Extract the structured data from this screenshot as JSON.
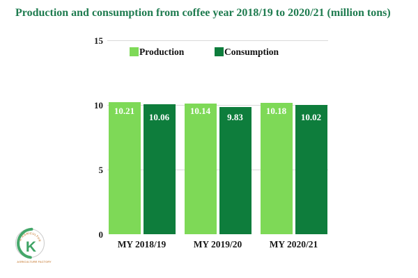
{
  "chart_data": {
    "type": "bar",
    "title": "Production and consumption from coffee year 2018/19 to 2020/21 (million tons)",
    "title_color": "#1e7b4f",
    "categories": [
      "MY 2018/19",
      "MY 2019/20",
      "MY 2020/21"
    ],
    "series": [
      {
        "name": "Production",
        "color": "#7ed957",
        "values": [
          10.21,
          10.14,
          10.18
        ]
      },
      {
        "name": "Consumption",
        "color": "#0e7d3c",
        "values": [
          10.06,
          9.83,
          10.02
        ]
      }
    ],
    "ylim": [
      0,
      15
    ],
    "yticks": [
      0,
      5,
      10,
      15
    ],
    "grid": true,
    "gridline_color": "#d9d9d9",
    "value_labels": true,
    "value_label_color": "#ffffff",
    "legend_position": "top",
    "xlabel": "",
    "ylabel": ""
  },
  "logo": {
    "letter": "K",
    "arc_text": "K-AGRICULTURE",
    "caption": "AGRICULTURE FACTORY",
    "letter_color": "#2f9c58",
    "accent_color": "#c8833f",
    "ring_color": "#c0c0c0",
    "crescent_color": "#3aa060"
  }
}
